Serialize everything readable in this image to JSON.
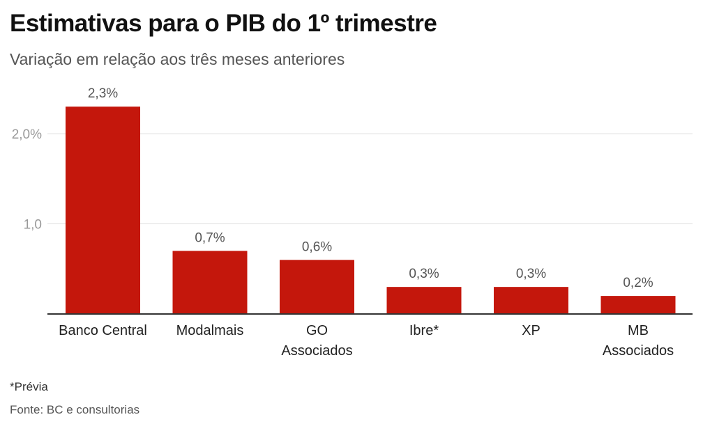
{
  "header": {
    "title": "Estimativas para o PIB do 1º trimestre",
    "subtitle": "Variação em relação aos três meses anteriores"
  },
  "footer": {
    "note": "*Prévia",
    "source": "Fonte: BC e consultorias"
  },
  "colors": {
    "bar": "#c4170c",
    "grid": "#e0e0e0",
    "axis": "#333333",
    "tick_text": "#999999",
    "label_text": "#555555"
  },
  "chart_data": {
    "type": "bar",
    "title": "Estimativas para o PIB do 1º trimestre",
    "subtitle": "Variação em relação aos três meses anteriores",
    "categories": [
      [
        "Banco Central"
      ],
      [
        "Modalmais"
      ],
      [
        "GO",
        "Associados"
      ],
      [
        "Ibre*"
      ],
      [
        "XP"
      ],
      [
        "MB",
        "Associados"
      ]
    ],
    "values": [
      2.3,
      0.7,
      0.6,
      0.3,
      0.3,
      0.2
    ],
    "value_labels": [
      "2,3%",
      "0,7%",
      "0,6%",
      "0,3%",
      "0,3%",
      "0,2%"
    ],
    "yticks": [
      {
        "value": 1.0,
        "label": "1,0"
      },
      {
        "value": 2.0,
        "label": "2,0%"
      }
    ],
    "ylim": [
      0,
      2.4
    ],
    "grid": true,
    "legend": "none"
  }
}
